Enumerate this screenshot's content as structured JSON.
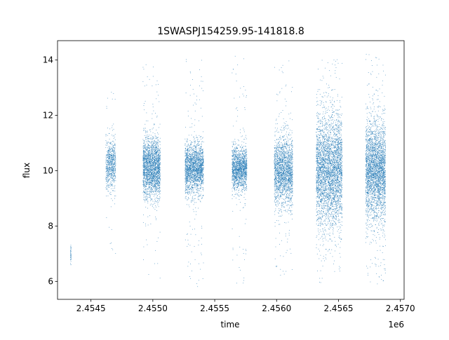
{
  "chart_data": {
    "type": "scatter",
    "title": "1SWASPJ154259.95-141818.8",
    "xlabel": "time",
    "ylabel": "flux",
    "x_offset_label": "1e6",
    "xlim": [
      2454230,
      2457030
    ],
    "ylim": [
      5.35,
      14.7
    ],
    "x_ticks": [
      2.4545,
      2.455,
      2.4555,
      2.456,
      2.4565,
      2.457
    ],
    "x_tick_labels": [
      "2.4545",
      "2.4550",
      "2.4555",
      "2.4560",
      "2.4565",
      "2.4570"
    ],
    "y_ticks": [
      6,
      8,
      10,
      12,
      14
    ],
    "y_tick_labels": [
      "6",
      "8",
      "10",
      "12",
      "14"
    ],
    "grid": false,
    "marker_color": "#1f77b4",
    "series": [
      {
        "segments": [
          {
            "x_start": 2454335,
            "x_end": 2454340,
            "y_center": 7.0,
            "y_spread": 0.25,
            "y_min": 6.6,
            "y_max": 7.4,
            "density": 40
          },
          {
            "x_start": 2454620,
            "x_end": 2454700,
            "y_center": 10.2,
            "y_spread": 0.45,
            "y_min": 6.6,
            "y_max": 13.2,
            "density": 700
          },
          {
            "x_start": 2454920,
            "x_end": 2455060,
            "y_center": 10.1,
            "y_spread": 0.55,
            "y_min": 6.0,
            "y_max": 14.0,
            "density": 2200
          },
          {
            "x_start": 2455260,
            "x_end": 2455410,
            "y_center": 10.1,
            "y_spread": 0.45,
            "y_min": 5.8,
            "y_max": 14.1,
            "density": 2000
          },
          {
            "x_start": 2455640,
            "x_end": 2455760,
            "y_center": 10.1,
            "y_spread": 0.4,
            "y_min": 5.9,
            "y_max": 14.3,
            "density": 1500
          },
          {
            "x_start": 2455980,
            "x_end": 2456130,
            "y_center": 10.0,
            "y_spread": 0.6,
            "y_min": 6.2,
            "y_max": 14.0,
            "density": 2000
          },
          {
            "x_start": 2456320,
            "x_end": 2456530,
            "y_center": 10.0,
            "y_spread": 1.0,
            "y_min": 5.8,
            "y_max": 14.2,
            "density": 3600
          },
          {
            "x_start": 2456720,
            "x_end": 2456880,
            "y_center": 10.0,
            "y_spread": 0.9,
            "y_min": 5.9,
            "y_max": 14.3,
            "density": 3000
          }
        ]
      }
    ]
  }
}
